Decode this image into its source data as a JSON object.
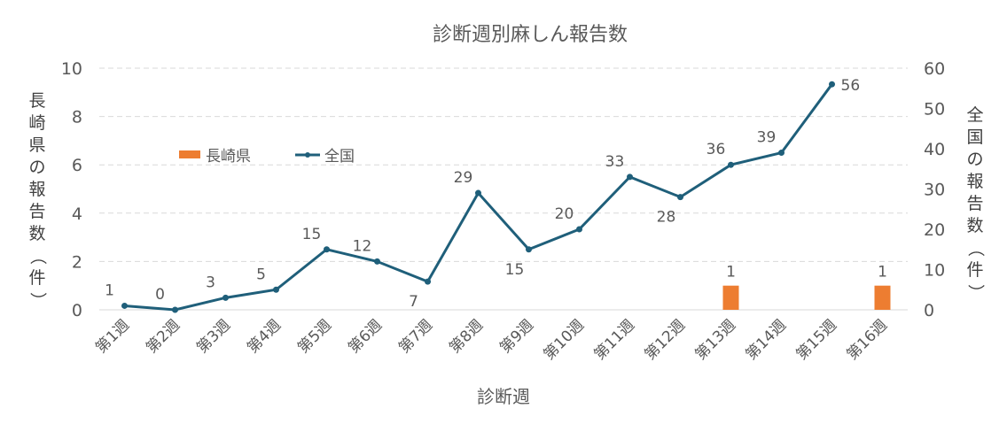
{
  "chart_data": {
    "type": "bar+line",
    "title": "診断週別麻しん報告数",
    "xlabel": "診断週",
    "ylabel_left": "長崎県の報告数（件）",
    "ylabel_right": "全国の報告数（件）",
    "categories": [
      "第1週",
      "第2週",
      "第3週",
      "第4週",
      "第5週",
      "第6週",
      "第7週",
      "第8週",
      "第9週",
      "第10週",
      "第11週",
      "第12週",
      "第13週",
      "第14週",
      "第15週",
      "第16週"
    ],
    "ylim_left": [
      0,
      10
    ],
    "yticks_left": [
      0,
      2,
      4,
      6,
      8,
      10
    ],
    "ylim_right": [
      0,
      60
    ],
    "yticks_right": [
      0,
      10,
      20,
      30,
      40,
      50,
      60
    ],
    "grid": true,
    "legend_placement": "upper-left",
    "series": [
      {
        "name": "長崎県",
        "type": "bar",
        "axis": "left",
        "color": "#ED7D31",
        "values": [
          0,
          0,
          0,
          0,
          0,
          0,
          0,
          0,
          0,
          0,
          0,
          0,
          1,
          0,
          0,
          1
        ],
        "labels": [
          null,
          null,
          null,
          null,
          null,
          null,
          null,
          null,
          null,
          null,
          null,
          null,
          "1",
          null,
          null,
          "1"
        ]
      },
      {
        "name": "全国",
        "type": "line",
        "axis": "right",
        "color": "#1F5F7A",
        "values": [
          1,
          0,
          3,
          5,
          15,
          12,
          7,
          29,
          15,
          20,
          33,
          28,
          36,
          39,
          56,
          null
        ]
      }
    ]
  }
}
